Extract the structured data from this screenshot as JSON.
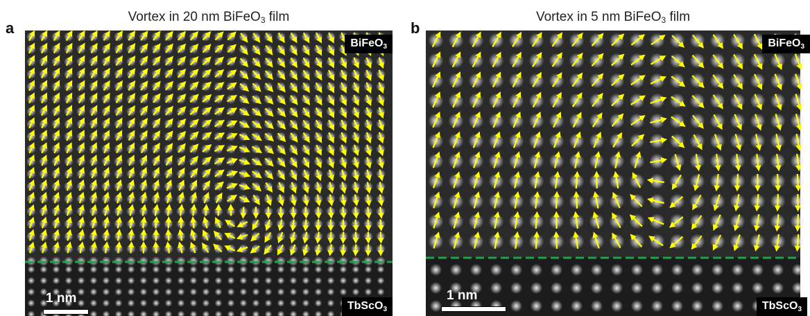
{
  "panels": [
    {
      "letter": "a",
      "title_prefix": "Vortex in 20 nm BiFeO",
      "title_sub": "3",
      "title_suffix": " film",
      "top_label": {
        "main": "BiFeO",
        "sub": "3"
      },
      "bottom_label": {
        "main": "TbScO",
        "sub": "3"
      },
      "scale_bar": "1 nm"
    },
    {
      "letter": "b",
      "title_prefix": "Vortex in 5 nm BiFeO",
      "title_sub": "3",
      "title_suffix": " film",
      "top_label": {
        "main": "BiFeO",
        "sub": "3"
      },
      "bottom_label": {
        "main": "TbScO",
        "sub": "3"
      },
      "scale_bar": "1 nm"
    }
  ],
  "colors": {
    "arrow": "#ffff00",
    "interface_line": "#1fa34a",
    "atom": "#e8e8e8",
    "background": "#2a2a2a"
  }
}
